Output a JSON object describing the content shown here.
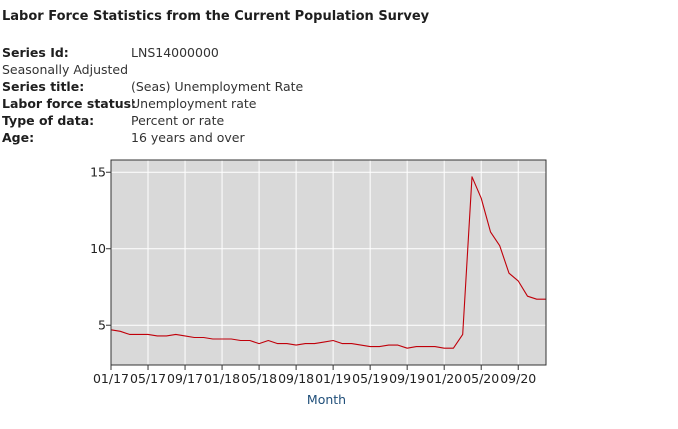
{
  "header": {
    "title": "Labor Force Statistics from the Current Population Survey"
  },
  "meta": {
    "series_id_label": "Series Id:",
    "series_id_value": "LNS14000000",
    "seasonal_note": "Seasonally Adjusted",
    "series_title_label": "Series title:",
    "series_title_value": "(Seas) Unemployment Rate",
    "labor_force_status_label": "Labor force status:",
    "labor_force_status_value": "Unemployment rate",
    "type_of_data_label": "Type of data:",
    "type_of_data_value": "Percent or rate",
    "age_label": "Age:",
    "age_value": "16 years and over"
  },
  "colors": {
    "plot_background": "#d9d9d9",
    "line": "#c0000a",
    "grid": "#ffffff",
    "axis_title": "#1f4e79"
  },
  "chart_data": {
    "type": "line",
    "title": "",
    "xlabel": "Month",
    "ylabel": "",
    "xlim": [
      0,
      47
    ],
    "ylim": [
      2.4,
      15.8
    ],
    "yticks": [
      5,
      10,
      15
    ],
    "ytick_labels": [
      "5",
      "10",
      "15"
    ],
    "xticks": [
      0,
      4,
      8,
      12,
      16,
      20,
      24,
      28,
      32,
      36,
      40,
      44
    ],
    "xtick_labels": [
      "01/17",
      "05/17",
      "09/17",
      "01/18",
      "05/18",
      "09/18",
      "01/19",
      "05/19",
      "09/19",
      "01/20",
      "05/20",
      "09/20"
    ],
    "grid": true,
    "series": [
      {
        "name": "Unemployment Rate",
        "x": [
          0,
          1,
          2,
          3,
          4,
          5,
          6,
          7,
          8,
          9,
          10,
          11,
          12,
          13,
          14,
          15,
          16,
          17,
          18,
          19,
          20,
          21,
          22,
          23,
          24,
          25,
          26,
          27,
          28,
          29,
          30,
          31,
          32,
          33,
          34,
          35,
          36,
          37,
          38,
          39,
          40,
          41,
          42,
          43,
          44,
          45,
          46,
          47
        ],
        "values": [
          4.7,
          4.6,
          4.4,
          4.4,
          4.4,
          4.3,
          4.3,
          4.4,
          4.3,
          4.2,
          4.2,
          4.1,
          4.1,
          4.1,
          4.0,
          4.0,
          3.8,
          4.0,
          3.8,
          3.8,
          3.7,
          3.8,
          3.8,
          3.9,
          4.0,
          3.8,
          3.8,
          3.7,
          3.6,
          3.6,
          3.7,
          3.7,
          3.5,
          3.6,
          3.6,
          3.6,
          3.5,
          3.5,
          4.4,
          14.7,
          13.3,
          11.1,
          10.2,
          8.4,
          7.9,
          6.9,
          6.7,
          6.7
        ]
      }
    ]
  }
}
